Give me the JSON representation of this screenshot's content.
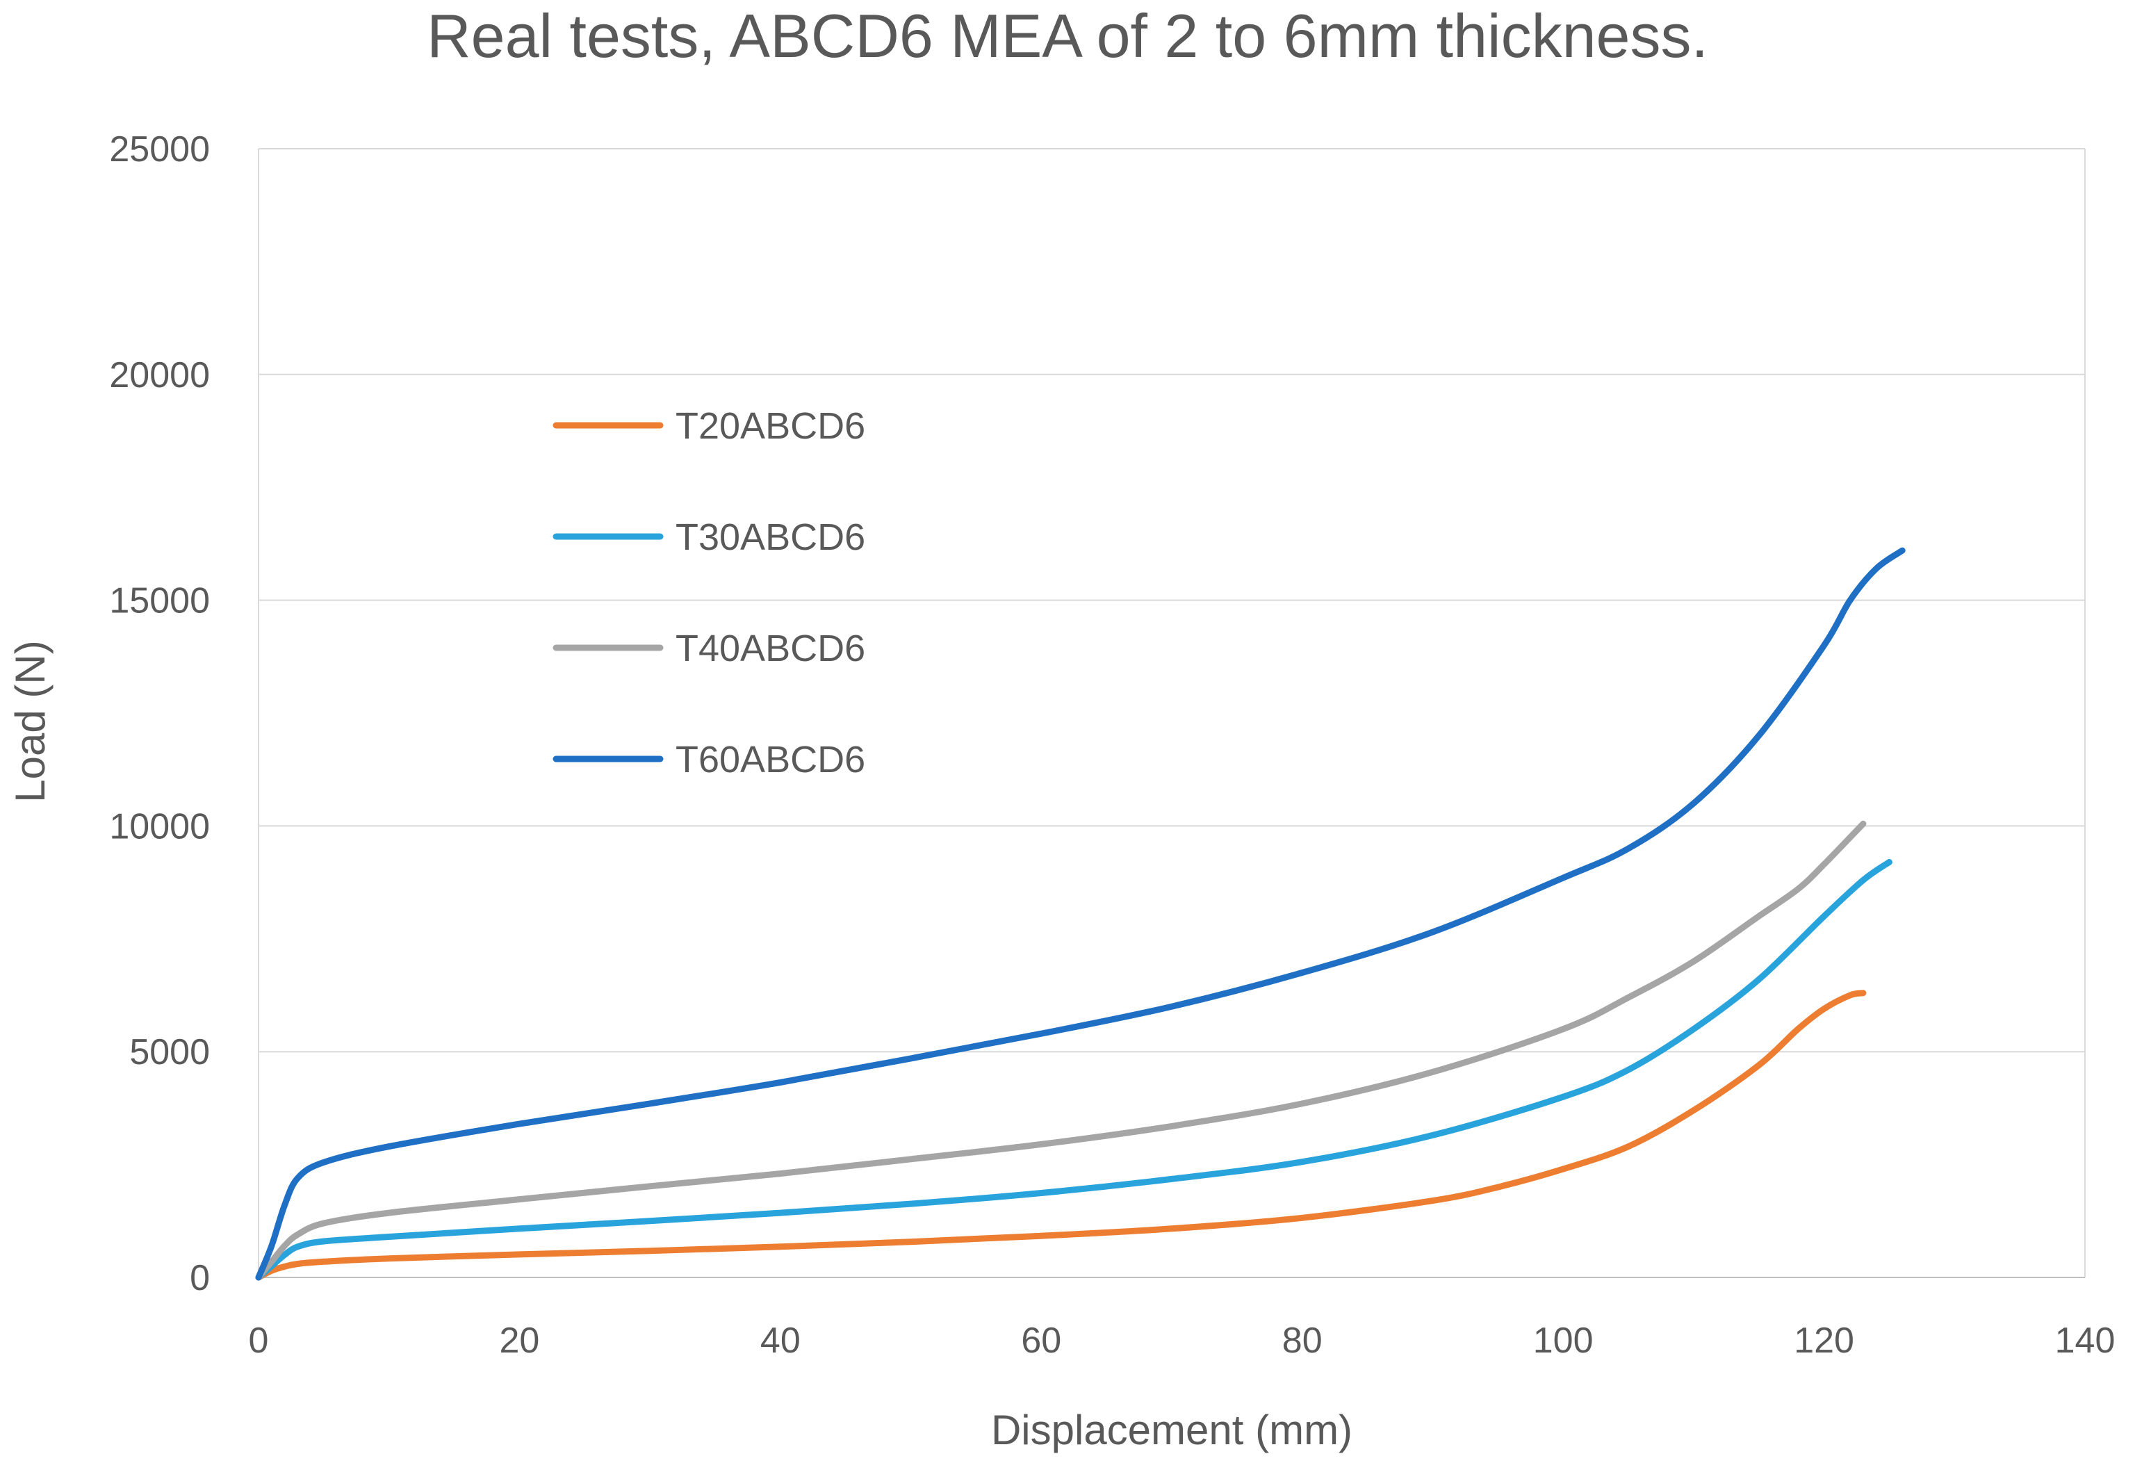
{
  "chart_data": {
    "type": "line",
    "title": "Real tests, ABCD6 MEA of 2 to 6mm thickness.",
    "xlabel": "Displacement (mm)",
    "ylabel": "Load (N)",
    "xlim": [
      0,
      140
    ],
    "ylim": [
      0,
      25000
    ],
    "xticks": [
      0,
      20,
      40,
      60,
      80,
      100,
      120,
      140
    ],
    "yticks": [
      0,
      5000,
      10000,
      15000,
      20000,
      25000
    ],
    "grid": "horizontal",
    "legend_position": "upper-left-inside",
    "series": [
      {
        "name": "T20ABCD6",
        "color": "#ED7D31",
        "x": [
          0,
          1,
          2,
          3,
          5,
          10,
          20,
          30,
          40,
          50,
          60,
          70,
          80,
          90,
          95,
          100,
          105,
          110,
          115,
          118,
          120,
          122,
          123
        ],
        "y": [
          0,
          150,
          240,
          300,
          350,
          420,
          510,
          590,
          680,
          790,
          920,
          1080,
          1320,
          1700,
          2000,
          2400,
          2900,
          3700,
          4700,
          5500,
          5950,
          6250,
          6300
        ]
      },
      {
        "name": "T30ABCD6",
        "color": "#29A3DB",
        "x": [
          0,
          1,
          2,
          3,
          5,
          10,
          20,
          30,
          40,
          50,
          60,
          70,
          80,
          90,
          100,
          105,
          110,
          115,
          120,
          123,
          125
        ],
        "y": [
          0,
          250,
          500,
          680,
          800,
          900,
          1080,
          1250,
          1430,
          1630,
          1870,
          2180,
          2560,
          3150,
          4000,
          4600,
          5500,
          6600,
          8000,
          8800,
          9200
        ]
      },
      {
        "name": "T40ABCD6",
        "color": "#A5A5A5",
        "x": [
          0,
          1,
          2,
          3,
          5,
          10,
          20,
          30,
          40,
          50,
          60,
          70,
          80,
          90,
          100,
          105,
          110,
          115,
          118,
          120,
          123
        ],
        "y": [
          0,
          350,
          700,
          950,
          1200,
          1430,
          1730,
          2020,
          2300,
          2620,
          2950,
          3350,
          3850,
          4550,
          5500,
          6200,
          7000,
          8000,
          8600,
          9150,
          10050
        ]
      },
      {
        "name": "T60ABCD6",
        "color": "#1F6FC5",
        "x": [
          0,
          1,
          2,
          3,
          5,
          10,
          20,
          30,
          40,
          50,
          60,
          70,
          80,
          90,
          100,
          105,
          110,
          115,
          120,
          122,
          124,
          126
        ],
        "y": [
          0,
          700,
          1600,
          2200,
          2550,
          2900,
          3400,
          3850,
          4320,
          4850,
          5400,
          6000,
          6750,
          7650,
          8850,
          9500,
          10500,
          12000,
          14000,
          15000,
          15700,
          16100
        ]
      }
    ]
  }
}
